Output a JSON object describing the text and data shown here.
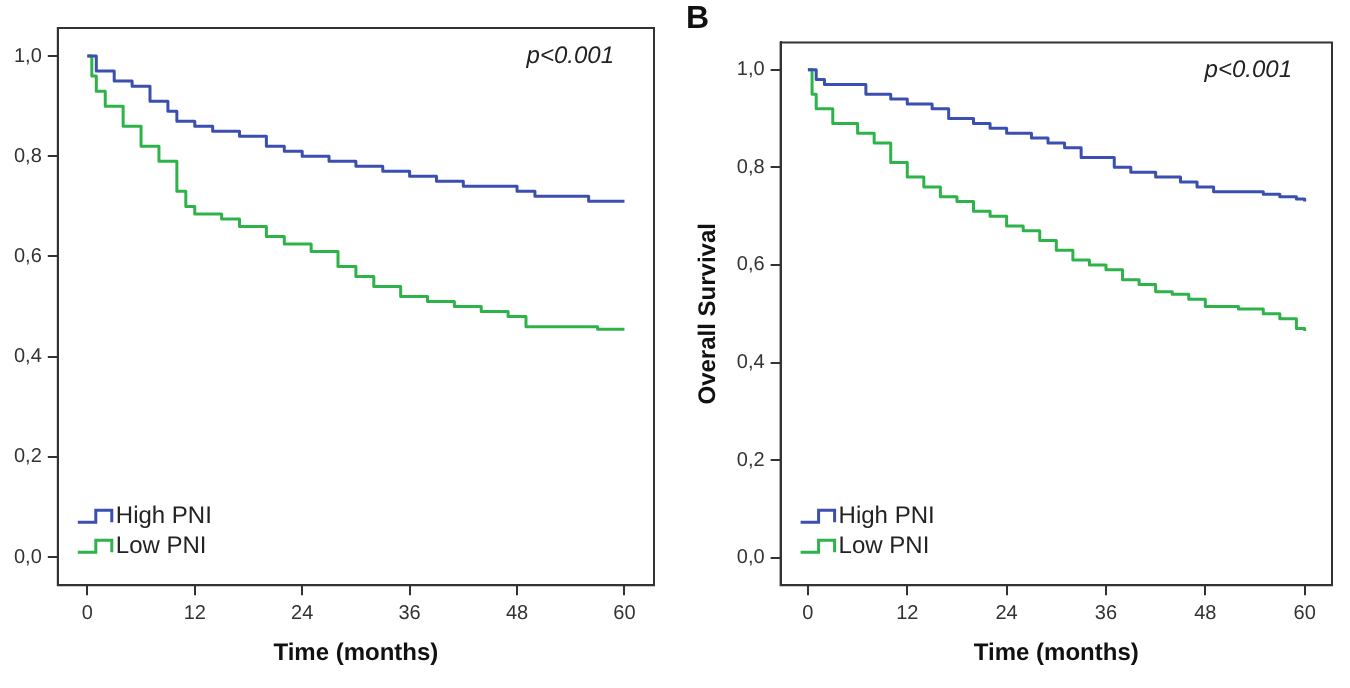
{
  "chart_data": [
    {
      "type": "step",
      "xlabel": "Time (months)",
      "annotations": [
        "p<0.001"
      ],
      "legend": "bottom left",
      "grid": false,
      "marker": "none",
      "xlim": [
        -3.3,
        63.3
      ],
      "ylim": [
        -0.056,
        1.056
      ],
      "xticks": [
        0,
        12,
        24,
        36,
        48,
        60
      ],
      "yticks": [
        {
          "value": 0,
          "label": "0,0"
        },
        {
          "value": 0.2,
          "label": "0,2"
        },
        {
          "value": 0.4,
          "label": "0,4"
        },
        {
          "value": 0.6,
          "label": "0,6"
        },
        {
          "value": 0.8,
          "label": "0,8"
        },
        {
          "value": 1,
          "label": "1,0"
        }
      ],
      "series": [
        {
          "name": "High PNI",
          "color": "#3a4fb0",
          "x": [
            0,
            1,
            3,
            5,
            7,
            9,
            10,
            12,
            14,
            17,
            20,
            22,
            24,
            27,
            30,
            33,
            36,
            39,
            42,
            47,
            48,
            50,
            55,
            56,
            60
          ],
          "values": [
            1,
            0.97,
            0.95,
            0.94,
            0.91,
            0.89,
            0.87,
            0.86,
            0.85,
            0.84,
            0.82,
            0.81,
            0.8,
            0.79,
            0.78,
            0.77,
            0.76,
            0.75,
            0.74,
            0.74,
            0.73,
            0.72,
            0.72,
            0.71,
            0.71
          ]
        },
        {
          "name": "Low PNI",
          "color": "#2db34a",
          "x": [
            0,
            0.5,
            1,
            2,
            4,
            6,
            8,
            10,
            11,
            12,
            15,
            17,
            20,
            22,
            25,
            28,
            30,
            32,
            35,
            38,
            41,
            44,
            47,
            49,
            55,
            57,
            60
          ],
          "values": [
            1,
            0.96,
            0.93,
            0.9,
            0.86,
            0.82,
            0.79,
            0.73,
            0.7,
            0.685,
            0.675,
            0.66,
            0.64,
            0.625,
            0.61,
            0.58,
            0.56,
            0.54,
            0.52,
            0.51,
            0.5,
            0.49,
            0.48,
            0.46,
            0.46,
            0.455,
            0.455
          ]
        }
      ]
    },
    {
      "type": "step",
      "title": "B",
      "xlabel": "Time (months)",
      "ylabel": "Overall Survival",
      "annotations": [
        "p<0.001"
      ],
      "legend": "bottom left",
      "grid": false,
      "marker": "none",
      "xlim": [
        -3.3,
        63.3
      ],
      "ylim": [
        -0.056,
        1.056
      ],
      "xticks": [
        0,
        12,
        24,
        36,
        48,
        60
      ],
      "yticks": [
        {
          "value": 0,
          "label": "0,0"
        },
        {
          "value": 0.2,
          "label": "0,2"
        },
        {
          "value": 0.4,
          "label": "0,4"
        },
        {
          "value": 0.6,
          "label": "0,6"
        },
        {
          "value": 0.8,
          "label": "0,8"
        },
        {
          "value": 1,
          "label": "1,0"
        }
      ],
      "series": [
        {
          "name": "High PNI",
          "color": "#3a4fb0",
          "x": [
            0,
            1,
            2,
            6,
            7,
            10,
            12,
            15,
            17,
            20,
            22,
            24,
            27,
            29,
            31,
            33,
            36,
            37,
            39,
            42,
            45,
            47,
            49,
            55,
            57,
            59,
            60
          ],
          "values": [
            1,
            0.98,
            0.97,
            0.97,
            0.95,
            0.94,
            0.93,
            0.92,
            0.9,
            0.89,
            0.88,
            0.87,
            0.86,
            0.85,
            0.84,
            0.82,
            0.82,
            0.8,
            0.79,
            0.78,
            0.77,
            0.76,
            0.75,
            0.745,
            0.74,
            0.735,
            0.73
          ]
        },
        {
          "name": "Low PNI",
          "color": "#2db34a",
          "x": [
            0,
            0.5,
            1,
            3,
            6,
            8,
            10,
            12,
            14,
            16,
            18,
            20,
            22,
            24,
            26,
            28,
            30,
            32,
            34,
            36,
            38,
            40,
            42,
            44,
            46,
            48,
            52,
            55,
            57,
            59,
            60
          ],
          "values": [
            1,
            0.95,
            0.92,
            0.89,
            0.87,
            0.85,
            0.81,
            0.78,
            0.76,
            0.74,
            0.73,
            0.71,
            0.7,
            0.68,
            0.67,
            0.65,
            0.63,
            0.61,
            0.6,
            0.59,
            0.57,
            0.56,
            0.545,
            0.54,
            0.53,
            0.515,
            0.51,
            0.5,
            0.49,
            0.47,
            0.465
          ]
        }
      ]
    }
  ]
}
